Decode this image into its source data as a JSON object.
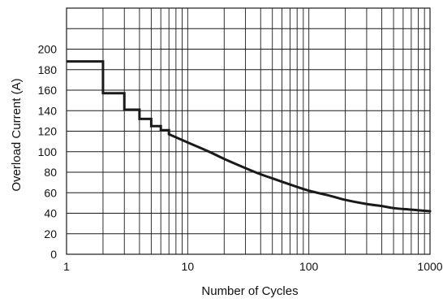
{
  "chart_data": {
    "type": "line",
    "title": "",
    "xlabel": "Number of Cycles",
    "ylabel": "Overload Current (A)",
    "x_scale": "log",
    "xlim": [
      1,
      1000
    ],
    "ylim": [
      0,
      240
    ],
    "grid": true,
    "legend": "none",
    "x_ticks": [
      {
        "value": 1,
        "label": "1"
      },
      {
        "value": 10,
        "label": "10"
      },
      {
        "value": 100,
        "label": "100"
      },
      {
        "value": 1000,
        "label": "1000"
      }
    ],
    "y_ticks": [
      {
        "value": 0,
        "label": "0"
      },
      {
        "value": 20,
        "label": "20"
      },
      {
        "value": 40,
        "label": "40"
      },
      {
        "value": 60,
        "label": "60"
      },
      {
        "value": 80,
        "label": "80"
      },
      {
        "value": 100,
        "label": "100"
      },
      {
        "value": 120,
        "label": "120"
      },
      {
        "value": 140,
        "label": "140"
      },
      {
        "value": 160,
        "label": "160"
      },
      {
        "value": 180,
        "label": "180"
      },
      {
        "value": 200,
        "label": "200"
      }
    ],
    "y_grid_step": 20,
    "series": [
      {
        "color": "#1a1a1a",
        "step_points": [
          {
            "x": 1,
            "y": 188
          },
          {
            "x": 2,
            "y": 188
          },
          {
            "x": 2,
            "y": 157
          },
          {
            "x": 3,
            "y": 157
          },
          {
            "x": 3,
            "y": 141
          },
          {
            "x": 4,
            "y": 141
          },
          {
            "x": 4,
            "y": 132
          },
          {
            "x": 5,
            "y": 132
          },
          {
            "x": 5,
            "y": 125
          },
          {
            "x": 6,
            "y": 125
          },
          {
            "x": 6,
            "y": 121
          },
          {
            "x": 7,
            "y": 121
          },
          {
            "x": 7,
            "y": 117
          }
        ],
        "curve_points": [
          {
            "x": 7,
            "y": 117
          },
          {
            "x": 10,
            "y": 109
          },
          {
            "x": 15,
            "y": 100
          },
          {
            "x": 20,
            "y": 93
          },
          {
            "x": 30,
            "y": 84
          },
          {
            "x": 40,
            "y": 78
          },
          {
            "x": 50,
            "y": 74
          },
          {
            "x": 70,
            "y": 68
          },
          {
            "x": 100,
            "y": 62
          },
          {
            "x": 150,
            "y": 57
          },
          {
            "x": 200,
            "y": 53
          },
          {
            "x": 300,
            "y": 49
          },
          {
            "x": 400,
            "y": 47
          },
          {
            "x": 500,
            "y": 45
          },
          {
            "x": 700,
            "y": 43.5
          },
          {
            "x": 1000,
            "y": 42
          }
        ]
      }
    ]
  }
}
